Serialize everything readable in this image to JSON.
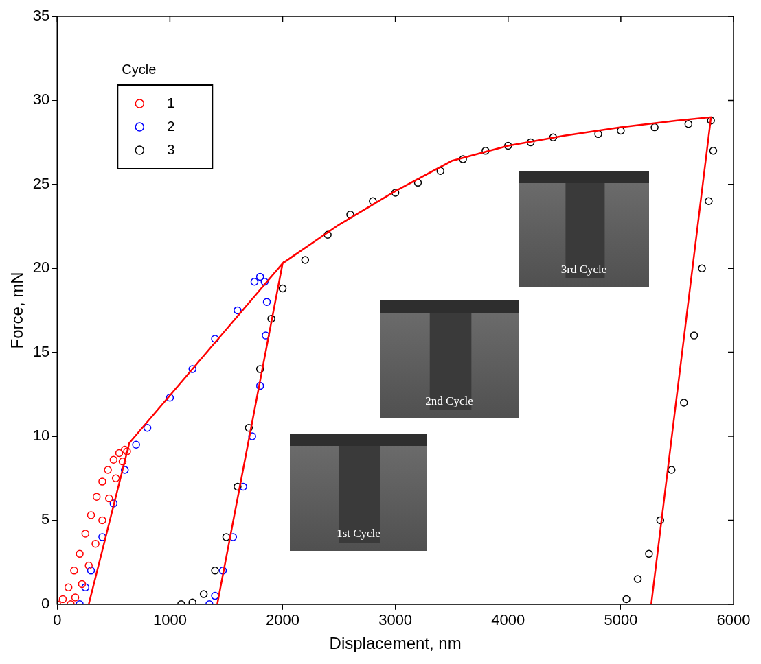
{
  "chart_data": {
    "type": "scatter",
    "x_label": "Displacement, nm",
    "y_label": "Force, mN",
    "legend_title": "Cycle",
    "legend": "upper left",
    "grid": false,
    "xlim": [
      0,
      6000
    ],
    "xticks": [
      0,
      1000,
      2000,
      3000,
      4000,
      5000,
      6000
    ],
    "ylim": [
      0,
      35
    ],
    "yticks": [
      0,
      5,
      10,
      15,
      20,
      25,
      30,
      35
    ],
    "annotations": [
      "1st Cycle",
      "2nd Cycle",
      "3rd Cycle"
    ],
    "series": [
      {
        "name": "1",
        "color": "#ff0000",
        "marker": "circle",
        "type": "scatter",
        "x": [
          0,
          50,
          100,
          150,
          200,
          250,
          300,
          350,
          400,
          450,
          500,
          550,
          600,
          620,
          580,
          520,
          460,
          400,
          340,
          280,
          220,
          160,
          120
        ],
        "values": [
          0,
          0.3,
          1,
          2,
          3,
          4.2,
          5.3,
          6.4,
          7.3,
          8,
          8.6,
          9,
          9.2,
          9.1,
          8.5,
          7.5,
          6.3,
          5,
          3.6,
          2.3,
          1.2,
          0.4,
          0
        ]
      },
      {
        "name": "2",
        "color": "#0000ff",
        "marker": "circle",
        "type": "scatter",
        "x": [
          200,
          250,
          300,
          400,
          500,
          600,
          700,
          800,
          1000,
          1200,
          1400,
          1600,
          1750,
          1800,
          1840,
          1860,
          1850,
          1800,
          1730,
          1650,
          1560,
          1470,
          1400,
          1350
        ],
        "values": [
          0,
          1,
          2,
          4,
          6,
          8,
          9.5,
          10.5,
          12.3,
          14,
          15.8,
          17.5,
          19.2,
          19.5,
          19.2,
          18,
          16,
          13,
          10,
          7,
          4,
          2,
          0.5,
          0
        ]
      },
      {
        "name": "3",
        "color": "#000000",
        "marker": "circle",
        "type": "scatter",
        "x": [
          1100,
          1200,
          1300,
          1400,
          1500,
          1600,
          1700,
          1800,
          1900,
          2000,
          2200,
          2400,
          2600,
          2800,
          3000,
          3200,
          3400,
          3600,
          3800,
          4000,
          4200,
          4400,
          4800,
          5000,
          5300,
          5600,
          5800,
          5820,
          5780,
          5720,
          5650,
          5560,
          5450,
          5350,
          5250,
          5150,
          5050
        ],
        "values": [
          0,
          0.1,
          0.6,
          2,
          4,
          7,
          10.5,
          14,
          17,
          18.8,
          20.5,
          22,
          23.2,
          24,
          24.5,
          25.1,
          25.8,
          26.5,
          27,
          27.3,
          27.5,
          27.8,
          28,
          28.2,
          28.4,
          28.6,
          28.8,
          27,
          24,
          20,
          16,
          12,
          8,
          5,
          3,
          1.5,
          0.3
        ]
      },
      {
        "color": "#ff0000",
        "type": "line",
        "line_style": "solid",
        "x": [
          280,
          640,
          2000,
          1420,
          2000,
          2500,
          3000,
          3500,
          4000,
          4500,
          5000,
          5500,
          5800,
          5270
        ],
        "values": [
          0,
          9.6,
          20.3,
          0,
          20.3,
          22.6,
          24.6,
          26.4,
          27.3,
          27.9,
          28.4,
          28.8,
          29,
          0
        ]
      }
    ]
  }
}
